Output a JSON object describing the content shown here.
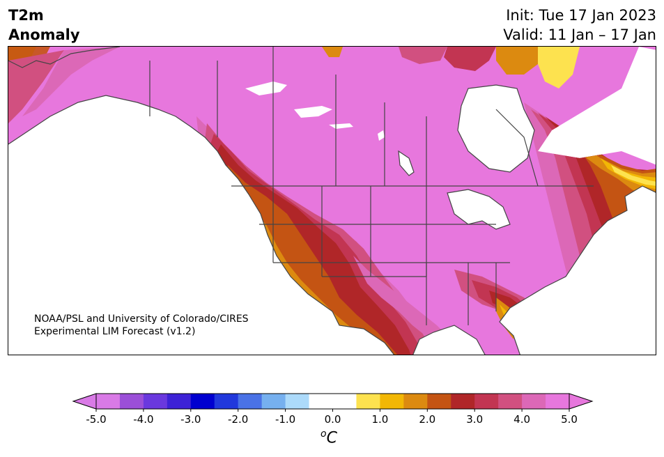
{
  "header": {
    "title_line1": "T2m",
    "title_line2": "Anomaly",
    "init": "Init: Tue 17 Jan 2023",
    "valid": "Valid: 11 Jan – 17 Jan"
  },
  "credit": {
    "line1": "NOAA/PSL and University of Colorado/CIRES",
    "line2": "Experimental LIM Forecast (v1.2)"
  },
  "colorbar": {
    "unit_superscript": "o",
    "unit": "C",
    "tick_labels": [
      "-5.0",
      "-4.0",
      "-3.0",
      "-2.0",
      "-1.0",
      "0.0",
      "1.0",
      "2.0",
      "3.0",
      "4.0",
      "5.0"
    ],
    "colors": [
      "#d97ae6",
      "#9b4fd8",
      "#6a38de",
      "#3d22d6",
      "#0000d0",
      "#2138dc",
      "#4a72e6",
      "#76b0ef",
      "#acdafa",
      "#ffffff",
      "#ffffff",
      "#fde24f",
      "#f2b705",
      "#dc8a10",
      "#c45413",
      "#b02628",
      "#c23552",
      "#d15080",
      "#dc68b7",
      "#e777dd"
    ]
  },
  "map": {
    "region": "North America",
    "variable": "2-m temperature anomaly",
    "colors": {
      "strong_warm": "#e777dd",
      "pink": "#dc68b7",
      "rose": "#d15080",
      "crimson": "#c23552",
      "red": "#b02628",
      "rust": "#c45413",
      "orange": "#dc8a10",
      "gold": "#f2b705",
      "yellow": "#fde24f",
      "neutral": "#ffffff",
      "outline": "#444444"
    }
  }
}
